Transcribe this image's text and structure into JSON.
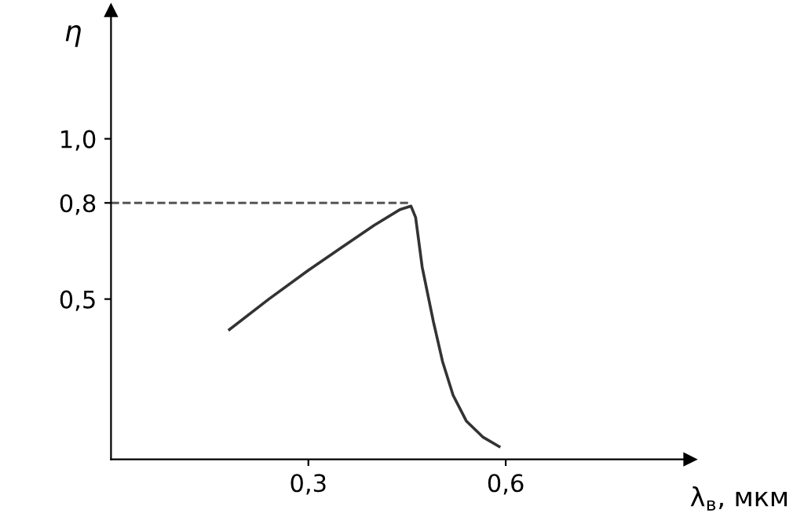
{
  "chart_data": {
    "type": "line",
    "xlabel": "λ$_{в}$, мкм",
    "ylabel": "η",
    "x": [
      0.18,
      0.24,
      0.3,
      0.35,
      0.4,
      0.44,
      0.456,
      0.463,
      0.473,
      0.49,
      0.504,
      0.52,
      0.54,
      0.565,
      0.59
    ],
    "series": [
      {
        "color": "#333333",
        "values": [
          0.405,
          0.5,
          0.59,
          0.66,
          0.73,
          0.78,
          0.79,
          0.755,
          0.6,
          0.43,
          0.305,
          0.2,
          0.12,
          0.07,
          0.04
        ]
      }
    ],
    "xlim": [
      0,
      0.88
    ],
    "ylim": [
      0,
      1.4
    ],
    "xticks": [
      {
        "value": 0.3,
        "label": "0,3"
      },
      {
        "value": 0.6,
        "label": "0,6"
      }
    ],
    "yticks": [
      {
        "value": 0.5,
        "label": "0,5"
      },
      {
        "value": 0.8,
        "label": "0,8"
      },
      {
        "value": 1.0,
        "label": "1,0"
      }
    ],
    "ref_lines": [
      {
        "axis": "y",
        "value": 0.8,
        "line_style": "dashed",
        "color": "#555555"
      }
    ],
    "grid": false,
    "legend": false,
    "marker": "none",
    "line_style": "solid"
  }
}
